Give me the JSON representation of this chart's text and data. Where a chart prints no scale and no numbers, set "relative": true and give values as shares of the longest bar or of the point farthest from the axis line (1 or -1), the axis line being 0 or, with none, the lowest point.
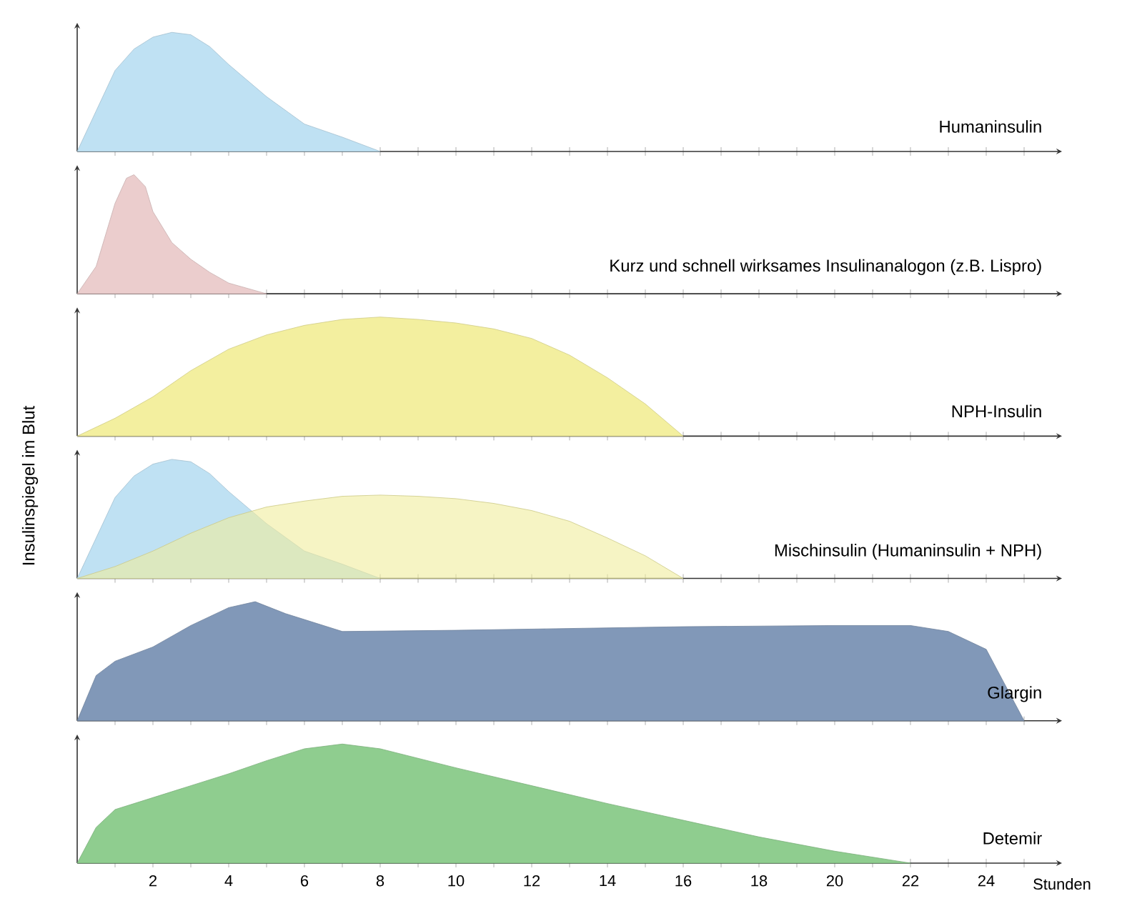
{
  "chart_data": [
    {
      "type": "area",
      "title": "Humaninsulin",
      "relative": true,
      "tick_labels": false,
      "xlim": [
        0,
        26
      ],
      "xticks": [
        {
          "value": 1,
          "label": null
        },
        2,
        {
          "value": 3,
          "label": null
        },
        4,
        {
          "value": 5,
          "label": null
        },
        6,
        {
          "value": 7,
          "label": null
        },
        8,
        {
          "value": 9,
          "label": null
        },
        10,
        {
          "value": 11,
          "label": null
        },
        12,
        {
          "value": 13,
          "label": null
        },
        14,
        {
          "value": 15,
          "label": null
        },
        16,
        {
          "value": 17,
          "label": null
        },
        18,
        {
          "value": 19,
          "label": null
        },
        20,
        {
          "value": 21,
          "label": null
        },
        22,
        {
          "value": 23,
          "label": null
        },
        24,
        {
          "value": 25,
          "label": null
        }
      ],
      "series": [
        {
          "color": "#bfe1f3",
          "x": [
            0,
            0.5,
            1,
            1.5,
            2,
            2.5,
            3,
            3.5,
            4,
            5,
            6,
            7,
            8
          ],
          "values": [
            0,
            0.34,
            0.68,
            0.86,
            0.96,
            1,
            0.98,
            0.88,
            0.73,
            0.46,
            0.23,
            0.12,
            0
          ]
        }
      ]
    },
    {
      "type": "area",
      "title": "Kurz und schnell wirksames Insulinanalogon (z.B. Lispro)",
      "relative": true,
      "tick_labels": false,
      "xlim": [
        0,
        26
      ],
      "xticks": [
        {
          "value": 1,
          "label": null
        },
        2,
        {
          "value": 3,
          "label": null
        },
        4,
        {
          "value": 5,
          "label": null
        },
        6,
        {
          "value": 7,
          "label": null
        },
        8,
        {
          "value": 9,
          "label": null
        },
        10,
        {
          "value": 11,
          "label": null
        },
        12,
        {
          "value": 13,
          "label": null
        },
        14,
        {
          "value": 15,
          "label": null
        },
        16,
        {
          "value": 17,
          "label": null
        },
        18,
        {
          "value": 19,
          "label": null
        },
        20,
        {
          "value": 21,
          "label": null
        },
        22,
        {
          "value": 23,
          "label": null
        },
        24,
        {
          "value": 25,
          "label": null
        }
      ],
      "series": [
        {
          "color": "#ebcdcd",
          "x": [
            0,
            0.5,
            1,
            1.3,
            1.5,
            1.8,
            2,
            2.5,
            3,
            3.5,
            4,
            5
          ],
          "values": [
            0,
            0.23,
            0.76,
            0.97,
            1,
            0.9,
            0.69,
            0.43,
            0.29,
            0.18,
            0.09,
            0
          ]
        }
      ]
    },
    {
      "type": "area",
      "title": "NPH-Insulin",
      "relative": true,
      "tick_labels": false,
      "xlim": [
        0,
        26
      ],
      "xticks": [
        {
          "value": 1,
          "label": null
        },
        2,
        {
          "value": 3,
          "label": null
        },
        4,
        {
          "value": 5,
          "label": null
        },
        6,
        {
          "value": 7,
          "label": null
        },
        8,
        {
          "value": 9,
          "label": null
        },
        10,
        {
          "value": 11,
          "label": null
        },
        12,
        {
          "value": 13,
          "label": null
        },
        14,
        {
          "value": 15,
          "label": null
        },
        16,
        {
          "value": 17,
          "label": null
        },
        18,
        {
          "value": 19,
          "label": null
        },
        20,
        {
          "value": 21,
          "label": null
        },
        22,
        {
          "value": 23,
          "label": null
        },
        24,
        {
          "value": 25,
          "label": null
        }
      ],
      "series": [
        {
          "color": "#f3ef9f",
          "x": [
            0,
            1,
            2,
            3,
            4,
            5,
            6,
            7,
            8,
            9,
            10,
            11,
            12,
            13,
            14,
            15,
            16
          ],
          "values": [
            0,
            0.15,
            0.33,
            0.55,
            0.73,
            0.85,
            0.93,
            0.98,
            1,
            0.98,
            0.95,
            0.9,
            0.82,
            0.68,
            0.49,
            0.27,
            0
          ]
        }
      ]
    },
    {
      "type": "area",
      "title": "Mischinsulin (Humaninsulin + NPH)",
      "ylabel": "Insulinspiegel im Blut",
      "relative": true,
      "tick_labels": false,
      "xlim": [
        0,
        26
      ],
      "xticks": [
        {
          "value": 1,
          "label": null
        },
        2,
        {
          "value": 3,
          "label": null
        },
        4,
        {
          "value": 5,
          "label": null
        },
        6,
        {
          "value": 7,
          "label": null
        },
        8,
        {
          "value": 9,
          "label": null
        },
        10,
        {
          "value": 11,
          "label": null
        },
        12,
        {
          "value": 13,
          "label": null
        },
        14,
        {
          "value": 15,
          "label": null
        },
        16,
        {
          "value": 17,
          "label": null
        },
        18,
        {
          "value": 19,
          "label": null
        },
        20,
        {
          "value": 21,
          "label": null
        },
        22,
        {
          "value": 23,
          "label": null
        },
        24,
        {
          "value": 25,
          "label": null
        }
      ],
      "series": [
        {
          "color": "#bfe1f3",
          "x": [
            0,
            0.5,
            1,
            1.5,
            2,
            2.5,
            3,
            3.5,
            4,
            5,
            6,
            7,
            8
          ],
          "values": [
            0,
            0.34,
            0.68,
            0.86,
            0.96,
            1,
            0.98,
            0.88,
            0.73,
            0.46,
            0.23,
            0.12,
            0
          ]
        },
        {
          "color": "#f0ec9c",
          "x": [
            0,
            1,
            2,
            3,
            4,
            5,
            6,
            7,
            8,
            9,
            10,
            11,
            12,
            13,
            14,
            15,
            16
          ],
          "values": [
            0,
            0.1,
            0.23,
            0.38,
            0.51,
            0.6,
            0.65,
            0.69,
            0.7,
            0.69,
            0.67,
            0.63,
            0.57,
            0.48,
            0.34,
            0.19,
            0
          ]
        }
      ]
    },
    {
      "type": "area",
      "title": "Glargin",
      "relative": true,
      "tick_labels": false,
      "xlim": [
        0,
        26
      ],
      "xticks": [
        {
          "value": 1,
          "label": null
        },
        2,
        {
          "value": 3,
          "label": null
        },
        4,
        {
          "value": 5,
          "label": null
        },
        6,
        {
          "value": 7,
          "label": null
        },
        8,
        {
          "value": 9,
          "label": null
        },
        10,
        {
          "value": 11,
          "label": null
        },
        12,
        {
          "value": 13,
          "label": null
        },
        14,
        {
          "value": 15,
          "label": null
        },
        16,
        {
          "value": 17,
          "label": null
        },
        18,
        {
          "value": 19,
          "label": null
        },
        20,
        {
          "value": 21,
          "label": null
        },
        22,
        {
          "value": 23,
          "label": null
        },
        24,
        {
          "value": 25,
          "label": null
        }
      ],
      "series": [
        {
          "color": "#8198b8",
          "x": [
            0,
            0.5,
            1,
            2,
            3,
            4,
            4.7,
            5.5,
            7,
            10,
            12,
            16,
            20,
            22,
            23,
            24,
            25
          ],
          "values": [
            0,
            0.38,
            0.5,
            0.62,
            0.8,
            0.95,
            1,
            0.9,
            0.75,
            0.76,
            0.77,
            0.79,
            0.8,
            0.8,
            0.75,
            0.6,
            0
          ]
        }
      ]
    },
    {
      "type": "area",
      "xlabel": "Stunden",
      "title": "Detemir",
      "relative": true,
      "tick_labels": "x",
      "xlim": [
        0,
        26
      ],
      "xticks": [
        {
          "value": 1,
          "label": null
        },
        2,
        {
          "value": 3,
          "label": null
        },
        4,
        {
          "value": 5,
          "label": null
        },
        6,
        {
          "value": 7,
          "label": null
        },
        8,
        {
          "value": 9,
          "label": null
        },
        10,
        {
          "value": 11,
          "label": null
        },
        12,
        {
          "value": 13,
          "label": null
        },
        14,
        {
          "value": 15,
          "label": null
        },
        16,
        {
          "value": 17,
          "label": null
        },
        18,
        {
          "value": 19,
          "label": null
        },
        20,
        {
          "value": 21,
          "label": null
        },
        22,
        {
          "value": 23,
          "label": null
        },
        24,
        {
          "value": 25,
          "label": null
        }
      ],
      "series": [
        {
          "color": "#8fcd8f",
          "x": [
            0,
            0.5,
            1,
            2,
            3,
            4,
            5,
            6,
            7,
            8,
            10,
            12,
            14,
            16,
            18,
            20,
            22
          ],
          "values": [
            0,
            0.3,
            0.45,
            0.55,
            0.65,
            0.75,
            0.86,
            0.96,
            1,
            0.96,
            0.8,
            0.65,
            0.5,
            0.36,
            0.22,
            0.1,
            0
          ]
        }
      ]
    }
  ]
}
